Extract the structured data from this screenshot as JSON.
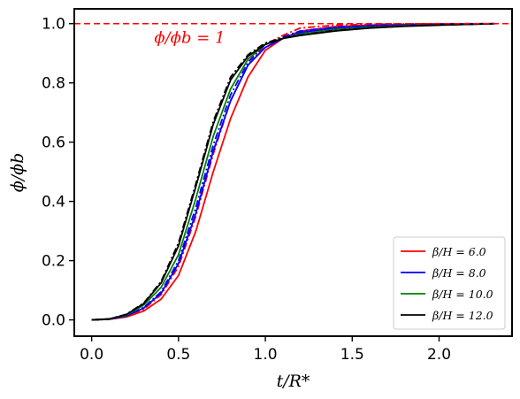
{
  "chart_data": {
    "type": "line",
    "title": "",
    "xlabel": "t/R*",
    "ylabel": "ϕ/ϕb",
    "xlim": [
      -0.1,
      2.42
    ],
    "ylim": [
      -0.055,
      1.05
    ],
    "xticks": [
      0.0,
      0.5,
      1.0,
      1.5,
      2.0
    ],
    "xtick_labels": [
      "0.0",
      "0.5",
      "1.0",
      "1.5",
      "2.0"
    ],
    "yticks": [
      0.0,
      0.2,
      0.4,
      0.6,
      0.8,
      1.0
    ],
    "ytick_labels": [
      "0.0",
      "0.2",
      "0.4",
      "0.6",
      "0.8",
      "1.0"
    ],
    "grid": false,
    "legend_position": "bottom-right",
    "reference_line": {
      "y": 1.0,
      "color": "#ff0000",
      "style": "dashed",
      "label": "ϕ/ϕb = 1"
    },
    "series": [
      {
        "name": "β/H = 6.0",
        "color": "#ff0000",
        "style": "solid",
        "in_legend": true,
        "x": [
          0,
          0.1,
          0.2,
          0.3,
          0.4,
          0.5,
          0.6,
          0.7,
          0.8,
          0.9,
          1.0,
          1.1,
          1.2,
          1.4,
          1.6,
          1.8,
          2.0,
          2.2,
          2.32
        ],
        "y": [
          0,
          0.002,
          0.01,
          0.03,
          0.07,
          0.15,
          0.3,
          0.5,
          0.68,
          0.82,
          0.91,
          0.95,
          0.975,
          0.99,
          0.995,
          0.997,
          0.998,
          0.999,
          1.0
        ]
      },
      {
        "name": "",
        "color": "#ff0000",
        "style": "dashdot",
        "in_legend": false,
        "x": [
          0,
          0.1,
          0.2,
          0.3,
          0.4,
          0.5,
          0.6,
          0.7,
          0.8,
          0.9,
          1.0,
          1.1,
          1.2,
          1.4,
          1.6,
          1.8,
          2.0,
          2.2,
          2.32
        ],
        "y": [
          0,
          0.002,
          0.012,
          0.036,
          0.085,
          0.18,
          0.35,
          0.56,
          0.74,
          0.86,
          0.93,
          0.96,
          0.985,
          0.995,
          0.998,
          0.999,
          1.0,
          1.0,
          1.0
        ]
      },
      {
        "name": "β/H = 8.0",
        "color": "#0000ff",
        "style": "solid",
        "in_legend": true,
        "x": [
          0,
          0.1,
          0.2,
          0.3,
          0.4,
          0.5,
          0.6,
          0.7,
          0.8,
          0.9,
          1.0,
          1.1,
          1.2,
          1.4,
          1.6,
          1.8,
          2.0,
          2.2,
          2.32
        ],
        "y": [
          0,
          0.002,
          0.013,
          0.04,
          0.09,
          0.19,
          0.36,
          0.57,
          0.74,
          0.86,
          0.92,
          0.95,
          0.97,
          0.985,
          0.992,
          0.995,
          0.998,
          0.999,
          1.0
        ]
      },
      {
        "name": "",
        "color": "#0000ff",
        "style": "dashdot",
        "in_legend": false,
        "x": [
          0,
          0.1,
          0.2,
          0.3,
          0.4,
          0.5,
          0.6,
          0.7,
          0.8,
          0.9,
          1.0,
          1.1,
          1.2,
          1.4,
          1.6,
          1.8,
          2.0,
          2.2,
          2.32
        ],
        "y": [
          0,
          0.002,
          0.014,
          0.042,
          0.095,
          0.2,
          0.38,
          0.59,
          0.76,
          0.87,
          0.93,
          0.955,
          0.975,
          0.988,
          0.994,
          0.997,
          0.999,
          1.0,
          1.0
        ]
      },
      {
        "name": "β/H = 10.0",
        "color": "#008000",
        "style": "solid",
        "in_legend": true,
        "x": [
          0,
          0.1,
          0.2,
          0.3,
          0.4,
          0.5,
          0.6,
          0.7,
          0.8,
          0.9,
          1.0,
          1.1,
          1.2,
          1.4,
          1.6,
          1.8,
          2.0,
          2.2,
          2.32
        ],
        "y": [
          0,
          0.003,
          0.016,
          0.05,
          0.11,
          0.22,
          0.41,
          0.62,
          0.78,
          0.88,
          0.93,
          0.95,
          0.965,
          0.98,
          0.988,
          0.993,
          0.996,
          0.998,
          1.0
        ]
      },
      {
        "name": "β/H = 12.0",
        "color": "#000000",
        "style": "solid",
        "in_legend": true,
        "x": [
          0,
          0.1,
          0.2,
          0.3,
          0.4,
          0.5,
          0.6,
          0.7,
          0.8,
          0.9,
          1.0,
          1.1,
          1.2,
          1.4,
          1.6,
          1.8,
          2.0,
          2.2,
          2.32
        ],
        "y": [
          0,
          0.003,
          0.018,
          0.055,
          0.125,
          0.25,
          0.45,
          0.66,
          0.81,
          0.89,
          0.93,
          0.95,
          0.96,
          0.975,
          0.985,
          0.991,
          0.995,
          0.998,
          1.0
        ]
      },
      {
        "name": "",
        "color": "#000000",
        "style": "dashdot",
        "in_legend": false,
        "x": [
          0,
          0.1,
          0.2,
          0.3,
          0.4,
          0.5,
          0.6,
          0.7,
          0.8,
          0.9,
          1.0,
          1.1,
          1.2,
          1.4,
          1.6,
          1.8,
          2.0,
          2.2,
          2.32
        ],
        "y": [
          0,
          0.003,
          0.019,
          0.057,
          0.13,
          0.26,
          0.46,
          0.67,
          0.82,
          0.895,
          0.935,
          0.952,
          0.962,
          0.977,
          0.986,
          0.992,
          0.996,
          0.998,
          1.0
        ]
      }
    ]
  }
}
